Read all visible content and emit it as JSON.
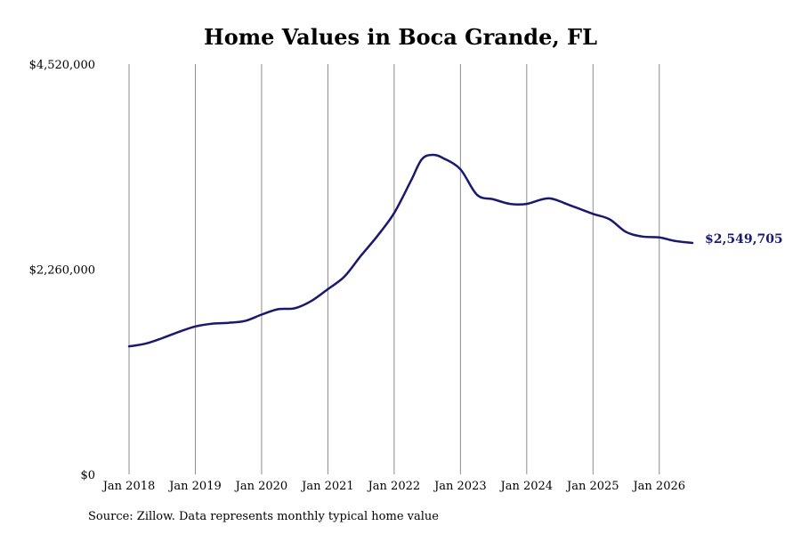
{
  "chart_data": {
    "type": "line",
    "title": "Home Values in Boca Grande, FL",
    "source": "Source: Zillow. Data represents monthly typical home value",
    "xlabel": "",
    "ylabel": "",
    "ylim": [
      0,
      4520000
    ],
    "yticks": [
      0,
      2260000,
      4520000
    ],
    "ytick_labels": [
      "$0",
      "$2,260,000",
      "$4,520,000"
    ],
    "xlim": [
      "2018-01",
      "2026-07"
    ],
    "xticks": [
      "2018-01",
      "2019-01",
      "2020-01",
      "2021-01",
      "2022-01",
      "2023-01",
      "2024-01",
      "2025-01",
      "2026-01"
    ],
    "xtick_labels": [
      "Jan 2018",
      "Jan 2019",
      "Jan 2020",
      "Jan 2021",
      "Jan 2022",
      "Jan 2023",
      "Jan 2024",
      "Jan 2025",
      "Jan 2026"
    ],
    "grid": "vertical",
    "line_color": "#191970",
    "end_label": "$2,549,705",
    "series": [
      {
        "x": [
          "2018-01",
          "2018-04",
          "2018-07",
          "2018-10",
          "2019-01",
          "2019-04",
          "2019-07",
          "2019-10",
          "2020-01",
          "2020-04",
          "2020-07",
          "2020-10",
          "2021-01",
          "2021-04",
          "2021-07",
          "2021-10",
          "2022-01",
          "2022-04",
          "2022-06",
          "2022-08",
          "2022-10",
          "2023-01",
          "2023-04",
          "2023-07",
          "2023-10",
          "2024-01",
          "2024-05",
          "2024-09",
          "2025-01",
          "2025-04",
          "2025-07",
          "2025-10",
          "2026-01",
          "2026-04",
          "2026-07"
        ],
        "y": [
          1410000,
          1440000,
          1500000,
          1570000,
          1630000,
          1660000,
          1670000,
          1690000,
          1760000,
          1820000,
          1830000,
          1910000,
          2040000,
          2180000,
          2410000,
          2630000,
          2880000,
          3230000,
          3470000,
          3520000,
          3480000,
          3360000,
          3080000,
          3030000,
          2980000,
          2980000,
          3040000,
          2960000,
          2870000,
          2810000,
          2670000,
          2620000,
          2610000,
          2570000,
          2549705
        ]
      }
    ]
  }
}
